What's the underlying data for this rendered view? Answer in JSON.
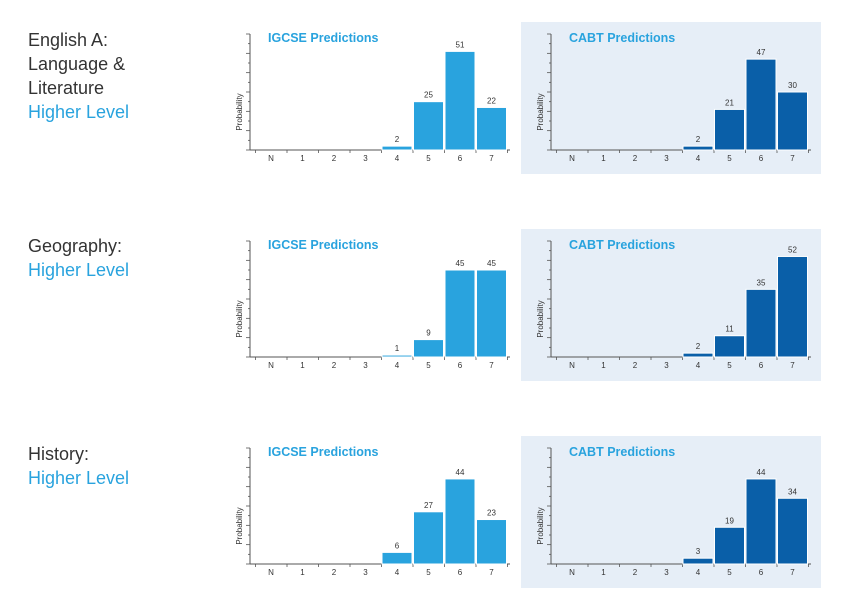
{
  "colors": {
    "igcse_bar": "#29a3de",
    "cabt_bar": "#0a5fa8",
    "cabt_panel_bg": "#e6eef7",
    "level_text": "#29a3de"
  },
  "rows": [
    {
      "subject": "English A:\nLanguage &\nLiterature",
      "level": "Higher Level"
    },
    {
      "subject": "Geography:",
      "level": "Higher Level"
    },
    {
      "subject": "History:",
      "level": "Higher Level"
    }
  ],
  "chart_data": [
    {
      "type": "bar",
      "title": "IGCSE Predictions",
      "ylabel": "Probability",
      "categories": [
        "N",
        "1",
        "2",
        "3",
        "4",
        "5",
        "6",
        "7"
      ],
      "values": [
        0,
        0,
        0,
        0,
        2,
        25,
        51,
        22
      ],
      "labels": [
        "",
        "",
        "",
        "",
        "2",
        "25",
        "51",
        "22"
      ]
    },
    {
      "type": "bar",
      "title": "CABT Predictions",
      "ylabel": "Probability",
      "categories": [
        "N",
        "1",
        "2",
        "3",
        "4",
        "5",
        "6",
        "7"
      ],
      "values": [
        0,
        0,
        0,
        0,
        2,
        21,
        47,
        30
      ],
      "labels": [
        "",
        "",
        "",
        "",
        "2",
        "21",
        "47",
        "30"
      ]
    },
    {
      "type": "bar",
      "title": "IGCSE Predictions",
      "ylabel": "Probability",
      "categories": [
        "N",
        "1",
        "2",
        "3",
        "4",
        "5",
        "6",
        "7"
      ],
      "values": [
        0,
        0,
        0,
        0,
        1,
        9,
        45,
        45
      ],
      "labels": [
        "",
        "",
        "",
        "",
        "1",
        "9",
        "45",
        "45"
      ]
    },
    {
      "type": "bar",
      "title": "CABT Predictions",
      "ylabel": "Probability",
      "categories": [
        "N",
        "1",
        "2",
        "3",
        "4",
        "5",
        "6",
        "7"
      ],
      "values": [
        0,
        0,
        0,
        0,
        2,
        11,
        35,
        52
      ],
      "labels": [
        "",
        "",
        "",
        "",
        "2",
        "11",
        "35",
        "52"
      ]
    },
    {
      "type": "bar",
      "title": "IGCSE Predictions",
      "ylabel": "Probability",
      "categories": [
        "N",
        "1",
        "2",
        "3",
        "4",
        "5",
        "6",
        "7"
      ],
      "values": [
        0,
        0,
        0,
        0,
        6,
        27,
        44,
        23
      ],
      "labels": [
        "",
        "",
        "",
        "",
        "6",
        "27",
        "44",
        "23"
      ]
    },
    {
      "type": "bar",
      "title": "CABT Predictions",
      "ylabel": "Probability",
      "categories": [
        "N",
        "1",
        "2",
        "3",
        "4",
        "5",
        "6",
        "7"
      ],
      "values": [
        0,
        0,
        0,
        0,
        3,
        19,
        44,
        34
      ],
      "labels": [
        "",
        "",
        "",
        "",
        "3",
        "19",
        "44",
        "34"
      ]
    }
  ]
}
